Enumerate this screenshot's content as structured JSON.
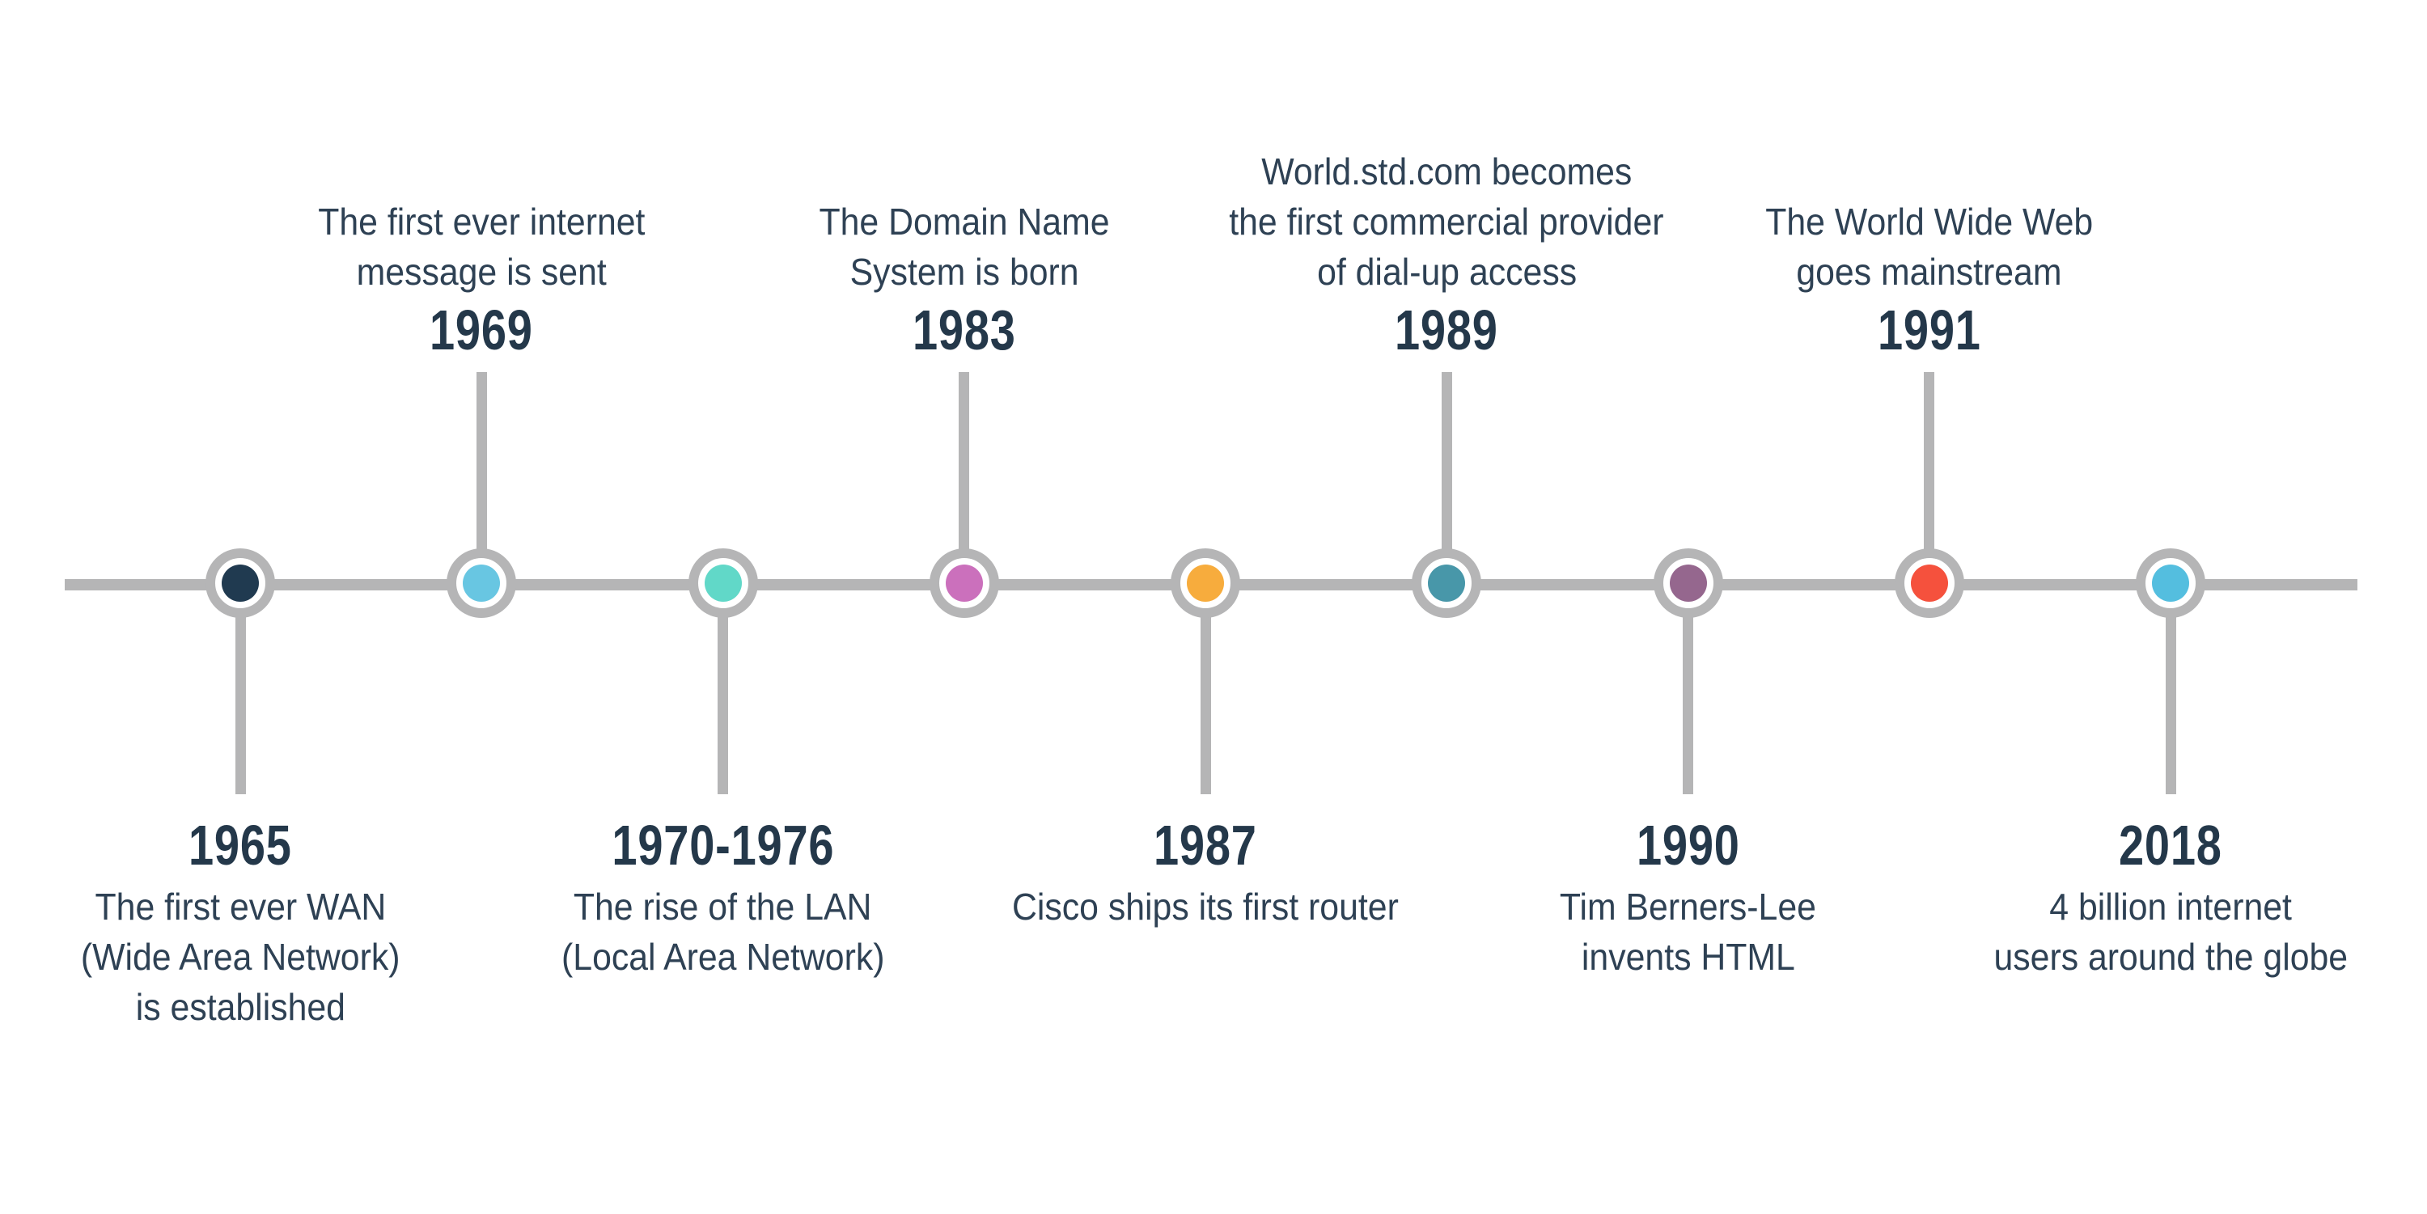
{
  "timeline": {
    "background_color": "#ffffff",
    "line_color": "#b5b5b6",
    "description_text_color": "#2e4154",
    "year_text_color": "#24384a",
    "events": [
      {
        "year": "1965",
        "side": "below",
        "dot_color": "#203a50",
        "description": [
          "The first ever WAN",
          "(Wide Area Network)",
          "is established"
        ]
      },
      {
        "year": "1969",
        "side": "above",
        "dot_color": "#68c6e2",
        "description": [
          "The first ever internet",
          "message is sent"
        ]
      },
      {
        "year": "1970-1976",
        "side": "below",
        "dot_color": "#61d8c8",
        "description": [
          "The rise of the LAN",
          "(Local Area Network)"
        ]
      },
      {
        "year": "1983",
        "side": "above",
        "dot_color": "#cb70bc",
        "description": [
          "The Domain Name",
          "System is born"
        ]
      },
      {
        "year": "1987",
        "side": "below",
        "dot_color": "#f7ac3d",
        "description": [
          "Cisco ships its first router"
        ]
      },
      {
        "year": "1989",
        "side": "above",
        "dot_color": "#4897a9",
        "description": [
          "World.std.com becomes",
          "the first commercial provider",
          "of dial-up access"
        ]
      },
      {
        "year": "1990",
        "side": "below",
        "dot_color": "#95678e",
        "description": [
          "Tim Berners-Lee",
          "invents HTML"
        ]
      },
      {
        "year": "1991",
        "side": "above",
        "dot_color": "#f5513d",
        "description": [
          "The World Wide Web",
          "goes mainstream"
        ]
      },
      {
        "year": "2018",
        "side": "below",
        "dot_color": "#54bedf",
        "description": [
          "4 billion internet",
          "users around the globe"
        ]
      }
    ]
  }
}
